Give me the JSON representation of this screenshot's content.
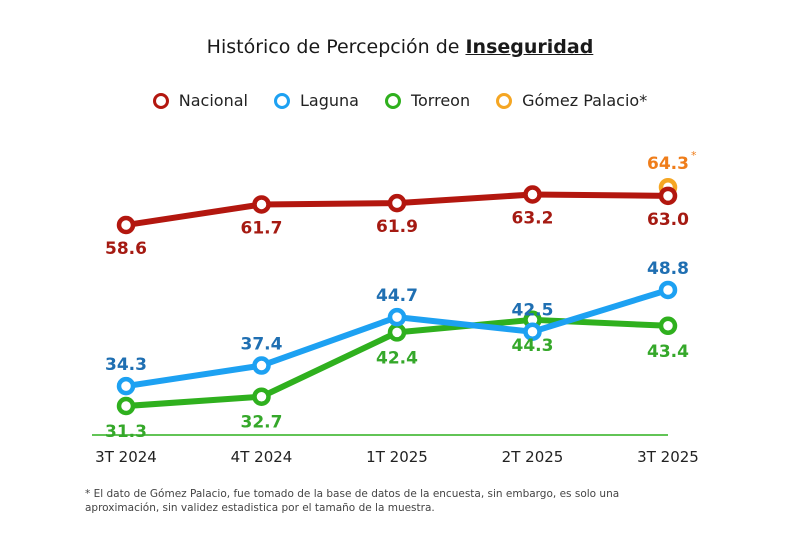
{
  "chart_data": {
    "type": "line",
    "title_prefix": "Histórico de Percepción de ",
    "title_emphasis": "Inseguridad",
    "xlabel": "",
    "ylabel": "",
    "categories": [
      "3T 2024",
      "4T 2024",
      "1T 2025",
      "2T 2025",
      "3T 2025"
    ],
    "grid": false,
    "legend_position": "top-center",
    "series": [
      {
        "name": "Nacional",
        "color": "#b3170f",
        "label_color": "#a51a12",
        "values": [
          58.6,
          61.7,
          61.9,
          63.2,
          63.0
        ],
        "label_pos": [
          "below",
          "below",
          "below",
          "below",
          "below"
        ]
      },
      {
        "name": "Laguna",
        "color": "#1da1f2",
        "label_color": "#1f6fb2",
        "values": [
          34.3,
          37.4,
          44.7,
          42.5,
          48.8
        ],
        "label_pos": [
          "above",
          "above",
          "above",
          "above",
          "above"
        ]
      },
      {
        "name": "Torreon",
        "color": "#2fb01e",
        "label_color": "#35a82a",
        "values": [
          31.3,
          32.7,
          42.4,
          44.3,
          43.4
        ],
        "label_pos": [
          "below",
          "below",
          "below",
          "below",
          "below"
        ]
      },
      {
        "name": "Gómez Palacio*",
        "color": "#f5a623",
        "label_color": "#ef7d1a",
        "values": [
          null,
          null,
          null,
          null,
          64.3
        ],
        "label_pos": [
          null,
          null,
          null,
          null,
          "above"
        ],
        "label_suffix": "*"
      }
    ]
  },
  "footnote": "* El dato de Gómez Palacio, fue tomado de la base de datos de la encuesta, sin embargo, es solo una aproximación, sin validez estadistica por el tamaño de la muestra."
}
